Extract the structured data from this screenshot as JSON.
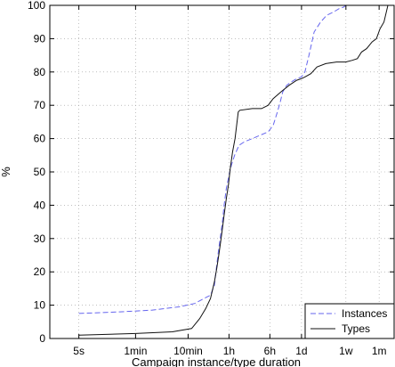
{
  "chart_data": {
    "type": "line",
    "xlabel": "Campaign instance/type duration",
    "ylabel": "%",
    "ylim": [
      0,
      100
    ],
    "xscale": "log",
    "xlim_seconds": [
      1.4,
      5000000
    ],
    "grid": true,
    "legend_position": "bottom-right",
    "x_ticks": [
      {
        "label": "5s",
        "seconds": 5
      },
      {
        "label": "1min",
        "seconds": 60
      },
      {
        "label": "10min",
        "seconds": 600
      },
      {
        "label": "1h",
        "seconds": 3600
      },
      {
        "label": "6h",
        "seconds": 21600
      },
      {
        "label": "1d",
        "seconds": 86400
      },
      {
        "label": "1w",
        "seconds": 604800
      },
      {
        "label": "1m",
        "seconds": 2592000
      }
    ],
    "y_ticks": [
      0,
      10,
      20,
      30,
      40,
      50,
      60,
      70,
      80,
      90,
      100
    ],
    "series": [
      {
        "name": "Instances",
        "color": "#6666ee",
        "style": "dashed",
        "x_seconds": [
          5,
          30,
          120,
          400,
          800,
          1200,
          1600,
          1900,
          2100,
          2300,
          2500,
          2700,
          2900,
          3200,
          3600,
          4000,
          4600,
          5600,
          7000,
          10000,
          14000,
          20000,
          25000,
          30000,
          34000,
          38000,
          45000,
          55000,
          70000,
          86000,
          100000,
          120000,
          150000,
          200000,
          260000,
          350000,
          450000,
          550000,
          600000,
          700000
        ],
        "y": [
          7.5,
          8,
          8.5,
          9.5,
          10.5,
          12,
          13,
          16,
          22,
          27,
          31,
          35,
          40,
          45,
          49,
          52,
          55,
          58,
          59,
          60,
          61,
          62,
          64,
          68,
          71,
          74,
          76,
          77,
          78,
          78.5,
          80,
          85,
          92,
          95,
          97,
          98,
          99,
          99.5,
          100,
          100
        ]
      },
      {
        "name": "Types",
        "color": "#111111",
        "style": "solid",
        "x_seconds": [
          5,
          60,
          300,
          700,
          1000,
          1300,
          1600,
          1900,
          2100,
          2300,
          2500,
          2700,
          2900,
          3200,
          3500,
          3800,
          4200,
          4700,
          5400,
          5800,
          10000,
          15000,
          20000,
          25000,
          35000,
          50000,
          70000,
          86000,
          100000,
          130000,
          170000,
          250000,
          400000,
          600000,
          800000,
          1000000,
          1200000,
          1500000,
          1900000,
          2300000,
          2700000,
          3200000,
          3800000
        ],
        "y": [
          1,
          1.5,
          2,
          3,
          6,
          9,
          12,
          17,
          21,
          25,
          29,
          33,
          37,
          42,
          46,
          51,
          56,
          60,
          68,
          68.5,
          69,
          69,
          70,
          72,
          74,
          76,
          77.5,
          78,
          78.5,
          79.5,
          81.5,
          82.5,
          83,
          83,
          83.5,
          84,
          86,
          87,
          89,
          90,
          93,
          95,
          100
        ]
      }
    ]
  }
}
